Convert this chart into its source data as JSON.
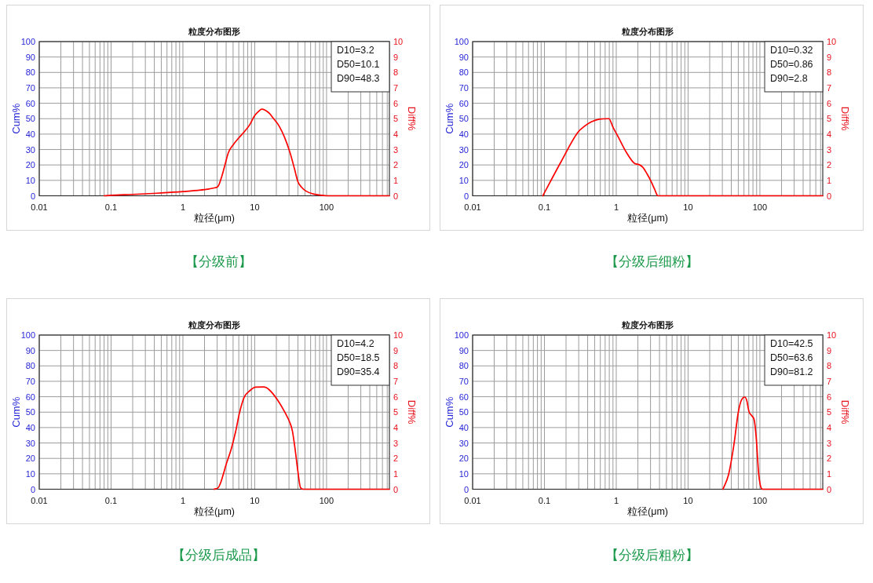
{
  "chart_data": [
    {
      "type": "line",
      "title": "粒度分布图形",
      "xlabel": "粒径(μm)",
      "ylabel": "Cum%",
      "y2label": "Diff%",
      "annotations": [
        "D10=3.2",
        "D50=10.1",
        "D90=48.3",
        "【分级前】"
      ],
      "log": "x",
      "grid": true,
      "xlim": [
        0.01,
        750
      ],
      "xticks": [
        0.01,
        {
          "value": 0.02,
          "label": null
        },
        {
          "value": 0.03,
          "label": null
        },
        {
          "value": 0.04,
          "label": null
        },
        {
          "value": 0.05,
          "label": null
        },
        {
          "value": 0.06,
          "label": null
        },
        {
          "value": 0.07,
          "label": null
        },
        {
          "value": 0.08,
          "label": null
        },
        {
          "value": 0.09,
          "label": null
        },
        0.1,
        {
          "value": 0.2,
          "label": null
        },
        {
          "value": 0.3,
          "label": null
        },
        {
          "value": 0.4,
          "label": null
        },
        {
          "value": 0.5,
          "label": null
        },
        {
          "value": 0.6,
          "label": null
        },
        {
          "value": 0.7,
          "label": null
        },
        {
          "value": 0.8,
          "label": null
        },
        {
          "value": 0.9,
          "label": null
        },
        1,
        {
          "value": 2,
          "label": null
        },
        {
          "value": 3,
          "label": null
        },
        {
          "value": 4,
          "label": null
        },
        {
          "value": 5,
          "label": null
        },
        {
          "value": 6,
          "label": null
        },
        {
          "value": 7,
          "label": null
        },
        {
          "value": 8,
          "label": null
        },
        {
          "value": 9,
          "label": null
        },
        10,
        {
          "value": 20,
          "label": null
        },
        {
          "value": 30,
          "label": null
        },
        {
          "value": 40,
          "label": null
        },
        {
          "value": 50,
          "label": null
        },
        {
          "value": 60,
          "label": null
        },
        {
          "value": 70,
          "label": null
        },
        {
          "value": 80,
          "label": null
        },
        {
          "value": 90,
          "label": null
        },
        100,
        {
          "value": 200,
          "label": null
        },
        {
          "value": 300,
          "label": null
        },
        {
          "value": 400,
          "label": null
        },
        {
          "value": 500,
          "label": null
        },
        {
          "value": 600,
          "label": null
        },
        {
          "value": 700,
          "label": null
        }
      ],
      "ylim": [
        0,
        100
      ],
      "yticks": [
        0,
        10,
        20,
        30,
        40,
        50,
        60,
        70,
        80,
        90,
        100
      ],
      "y2lim": [
        0,
        10
      ],
      "y2ticks": [
        0,
        1,
        2,
        3,
        4,
        5,
        6,
        7,
        8,
        9,
        10
      ],
      "series": [
        {
          "color": "#ff0000",
          "axis": "y2",
          "x": [
            0.08,
            0.1,
            0.2,
            0.5,
            1,
            2,
            2.8,
            3.1,
            3.5,
            3.8,
            4.3,
            5,
            6,
            7,
            8.5,
            10,
            11.5,
            12.5,
            14,
            16,
            18,
            22,
            26,
            31,
            36,
            40,
            45,
            52,
            65,
            80,
            100,
            750
          ],
          "values": [
            0,
            0.03,
            0.09,
            0.18,
            0.27,
            0.4,
            0.52,
            0.62,
            1.3,
            1.9,
            2.8,
            3.3,
            3.75,
            4.1,
            4.6,
            5.2,
            5.5,
            5.62,
            5.55,
            5.35,
            5.05,
            4.5,
            3.8,
            2.8,
            1.7,
            0.9,
            0.55,
            0.3,
            0.12,
            0.04,
            0,
            0
          ]
        }
      ]
    },
    {
      "type": "line",
      "title": "粒度分布图形",
      "xlabel": "粒径(μm)",
      "ylabel": "Cum%",
      "y2label": "Diff%",
      "annotations": [
        "D10=0.32",
        "D50=0.86",
        "D90=2.8",
        "【分级后细粉】"
      ],
      "log": "x",
      "grid": true,
      "xlim": [
        0.01,
        750
      ],
      "xticks": [
        0.01,
        {
          "value": 0.02,
          "label": null
        },
        {
          "value": 0.03,
          "label": null
        },
        {
          "value": 0.04,
          "label": null
        },
        {
          "value": 0.05,
          "label": null
        },
        {
          "value": 0.06,
          "label": null
        },
        {
          "value": 0.07,
          "label": null
        },
        {
          "value": 0.08,
          "label": null
        },
        {
          "value": 0.09,
          "label": null
        },
        0.1,
        {
          "value": 0.2,
          "label": null
        },
        {
          "value": 0.3,
          "label": null
        },
        {
          "value": 0.4,
          "label": null
        },
        {
          "value": 0.5,
          "label": null
        },
        {
          "value": 0.6,
          "label": null
        },
        {
          "value": 0.7,
          "label": null
        },
        {
          "value": 0.8,
          "label": null
        },
        {
          "value": 0.9,
          "label": null
        },
        1,
        {
          "value": 2,
          "label": null
        },
        {
          "value": 3,
          "label": null
        },
        {
          "value": 4,
          "label": null
        },
        {
          "value": 5,
          "label": null
        },
        {
          "value": 6,
          "label": null
        },
        {
          "value": 7,
          "label": null
        },
        {
          "value": 8,
          "label": null
        },
        {
          "value": 9,
          "label": null
        },
        10,
        {
          "value": 20,
          "label": null
        },
        {
          "value": 30,
          "label": null
        },
        {
          "value": 40,
          "label": null
        },
        {
          "value": 50,
          "label": null
        },
        {
          "value": 60,
          "label": null
        },
        {
          "value": 70,
          "label": null
        },
        {
          "value": 80,
          "label": null
        },
        {
          "value": 90,
          "label": null
        },
        100,
        {
          "value": 200,
          "label": null
        },
        {
          "value": 300,
          "label": null
        },
        {
          "value": 400,
          "label": null
        },
        {
          "value": 500,
          "label": null
        },
        {
          "value": 600,
          "label": null
        },
        {
          "value": 700,
          "label": null
        }
      ],
      "ylim": [
        0,
        100
      ],
      "yticks": [
        0,
        10,
        20,
        30,
        40,
        50,
        60,
        70,
        80,
        90,
        100
      ],
      "y2lim": [
        0,
        10
      ],
      "y2ticks": [
        0,
        1,
        2,
        3,
        4,
        5,
        6,
        7,
        8,
        9,
        10
      ],
      "series": [
        {
          "color": "#ff0000",
          "axis": "y2",
          "x": [
            0.095,
            0.17,
            0.29,
            0.37,
            0.45,
            0.58,
            0.79,
            0.9,
            1.07,
            1.39,
            1.8,
            2.06,
            2.34,
            2.7,
            3.04,
            3.4,
            3.8,
            750
          ],
          "values": [
            0,
            2.2,
            4.1,
            4.55,
            4.8,
            4.97,
            5,
            4.45,
            3.8,
            2.8,
            2.1,
            2.03,
            1.85,
            1.4,
            0.95,
            0.45,
            0,
            0
          ]
        }
      ]
    },
    {
      "type": "line",
      "title": "粒度分布图形",
      "xlabel": "粒径(μm)",
      "ylabel": "Cum%",
      "y2label": "Diff%",
      "annotations": [
        "D10=4.2",
        "D50=18.5",
        "D90=35.4",
        "【分级后成品】"
      ],
      "log": "x",
      "grid": true,
      "xlim": [
        0.01,
        750
      ],
      "xticks": [
        0.01,
        {
          "value": 0.02,
          "label": null
        },
        {
          "value": 0.03,
          "label": null
        },
        {
          "value": 0.04,
          "label": null
        },
        {
          "value": 0.05,
          "label": null
        },
        {
          "value": 0.06,
          "label": null
        },
        {
          "value": 0.07,
          "label": null
        },
        {
          "value": 0.08,
          "label": null
        },
        {
          "value": 0.09,
          "label": null
        },
        0.1,
        {
          "value": 0.2,
          "label": null
        },
        {
          "value": 0.3,
          "label": null
        },
        {
          "value": 0.4,
          "label": null
        },
        {
          "value": 0.5,
          "label": null
        },
        {
          "value": 0.6,
          "label": null
        },
        {
          "value": 0.7,
          "label": null
        },
        {
          "value": 0.8,
          "label": null
        },
        {
          "value": 0.9,
          "label": null
        },
        1,
        {
          "value": 2,
          "label": null
        },
        {
          "value": 3,
          "label": null
        },
        {
          "value": 4,
          "label": null
        },
        {
          "value": 5,
          "label": null
        },
        {
          "value": 6,
          "label": null
        },
        {
          "value": 7,
          "label": null
        },
        {
          "value": 8,
          "label": null
        },
        {
          "value": 9,
          "label": null
        },
        10,
        {
          "value": 20,
          "label": null
        },
        {
          "value": 30,
          "label": null
        },
        {
          "value": 40,
          "label": null
        },
        {
          "value": 50,
          "label": null
        },
        {
          "value": 60,
          "label": null
        },
        {
          "value": 70,
          "label": null
        },
        {
          "value": 80,
          "label": null
        },
        {
          "value": 90,
          "label": null
        },
        100,
        {
          "value": 200,
          "label": null
        },
        {
          "value": 300,
          "label": null
        },
        {
          "value": 400,
          "label": null
        },
        {
          "value": 500,
          "label": null
        },
        {
          "value": 600,
          "label": null
        },
        {
          "value": 700,
          "label": null
        }
      ],
      "ylim": [
        0,
        100
      ],
      "yticks": [
        0,
        10,
        20,
        30,
        40,
        50,
        60,
        70,
        80,
        90,
        100
      ],
      "y2lim": [
        0,
        10
      ],
      "y2ticks": [
        0,
        1,
        2,
        3,
        4,
        5,
        6,
        7,
        8,
        9,
        10
      ],
      "series": [
        {
          "color": "#ff0000",
          "axis": "y2",
          "x": [
            2.7,
            3.1,
            3.4,
            4.0,
            4.7,
            5.4,
            6.1,
            7.1,
            8.6,
            10.3,
            13.4,
            15.9,
            20.7,
            26.9,
            31,
            33.4,
            36.5,
            39.8,
            43.4,
            47.4,
            750
          ],
          "values": [
            0,
            0.1,
            0.5,
            1.6,
            2.6,
            3.7,
            4.9,
            5.95,
            6.4,
            6.62,
            6.63,
            6.45,
            5.8,
            4.9,
            4.3,
            3.8,
            2.6,
            1.2,
            0.1,
            0,
            0
          ]
        }
      ]
    },
    {
      "type": "line",
      "title": "粒度分布图形",
      "xlabel": "粒径(μm)",
      "ylabel": "Cum%",
      "y2label": "Diff%",
      "annotations": [
        "D10=42.5",
        "D50=63.6",
        "D90=81.2",
        "【分级后粗粉】"
      ],
      "log": "x",
      "grid": true,
      "xlim": [
        0.01,
        750
      ],
      "xticks": [
        0.01,
        {
          "value": 0.02,
          "label": null
        },
        {
          "value": 0.03,
          "label": null
        },
        {
          "value": 0.04,
          "label": null
        },
        {
          "value": 0.05,
          "label": null
        },
        {
          "value": 0.06,
          "label": null
        },
        {
          "value": 0.07,
          "label": null
        },
        {
          "value": 0.08,
          "label": null
        },
        {
          "value": 0.09,
          "label": null
        },
        0.1,
        {
          "value": 0.2,
          "label": null
        },
        {
          "value": 0.3,
          "label": null
        },
        {
          "value": 0.4,
          "label": null
        },
        {
          "value": 0.5,
          "label": null
        },
        {
          "value": 0.6,
          "label": null
        },
        {
          "value": 0.7,
          "label": null
        },
        {
          "value": 0.8,
          "label": null
        },
        {
          "value": 0.9,
          "label": null
        },
        1,
        {
          "value": 2,
          "label": null
        },
        {
          "value": 3,
          "label": null
        },
        {
          "value": 4,
          "label": null
        },
        {
          "value": 5,
          "label": null
        },
        {
          "value": 6,
          "label": null
        },
        {
          "value": 7,
          "label": null
        },
        {
          "value": 8,
          "label": null
        },
        {
          "value": 9,
          "label": null
        },
        10,
        {
          "value": 20,
          "label": null
        },
        {
          "value": 30,
          "label": null
        },
        {
          "value": 40,
          "label": null
        },
        {
          "value": 50,
          "label": null
        },
        {
          "value": 60,
          "label": null
        },
        {
          "value": 70,
          "label": null
        },
        {
          "value": 80,
          "label": null
        },
        {
          "value": 90,
          "label": null
        },
        100,
        {
          "value": 200,
          "label": null
        },
        {
          "value": 300,
          "label": null
        },
        {
          "value": 400,
          "label": null
        },
        {
          "value": 500,
          "label": null
        },
        {
          "value": 600,
          "label": null
        },
        {
          "value": 700,
          "label": null
        }
      ],
      "ylim": [
        0,
        100
      ],
      "yticks": [
        0,
        10,
        20,
        30,
        40,
        50,
        60,
        70,
        80,
        90,
        100
      ],
      "y2lim": [
        0,
        10
      ],
      "y2ticks": [
        0,
        1,
        2,
        3,
        4,
        5,
        6,
        7,
        8,
        9,
        10
      ],
      "series": [
        {
          "color": "#ff0000",
          "axis": "y2",
          "x": [
            30.6,
            36.5,
            43.5,
            49.5,
            54,
            58,
            61.7,
            65.6,
            70.4,
            76.9,
            84,
            89.2,
            95.7,
            102,
            109,
            750
          ],
          "values": [
            0,
            0.93,
            2.9,
            4.86,
            5.66,
            5.92,
            5.98,
            5.75,
            5.04,
            4.77,
            4.41,
            3.25,
            1.1,
            0.21,
            0,
            0
          ]
        }
      ]
    }
  ]
}
